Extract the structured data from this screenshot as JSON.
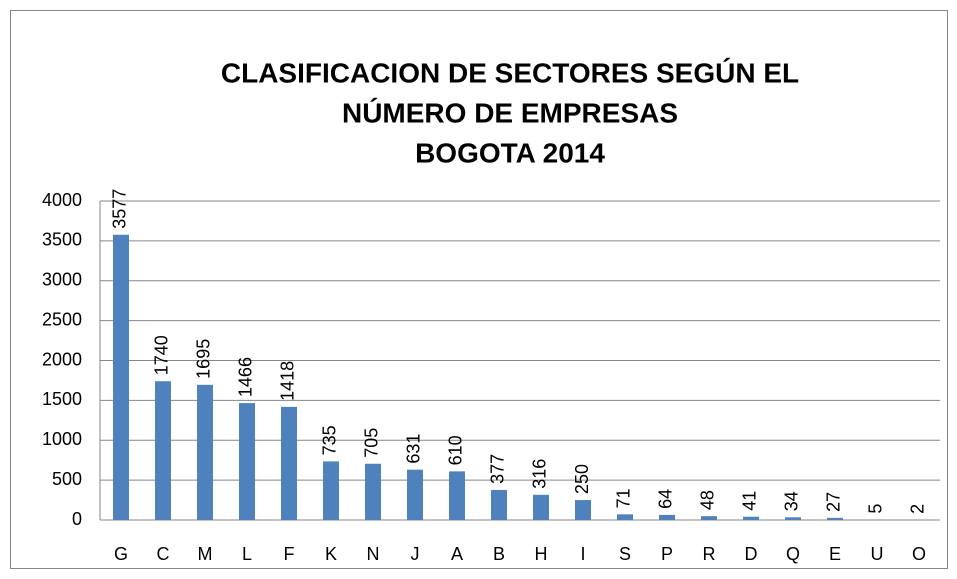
{
  "chart_data": {
    "type": "bar",
    "title": [
      "CLASIFICACION DE SECTORES SEGÚN EL",
      "NÚMERO DE EMPRESAS",
      "BOGOTA 2014"
    ],
    "categories": [
      "G",
      "C",
      "M",
      "L",
      "F",
      "K",
      "N",
      "J",
      "A",
      "B",
      "H",
      "I",
      "S",
      "P",
      "R",
      "D",
      "Q",
      "E",
      "U",
      "O"
    ],
    "values": [
      3577,
      1740,
      1695,
      1466,
      1418,
      735,
      705,
      631,
      610,
      377,
      316,
      250,
      71,
      64,
      48,
      41,
      34,
      27,
      5,
      2
    ],
    "color": "#4f81bd",
    "ylim": [
      0,
      4000
    ],
    "yticks": [
      0,
      500,
      1000,
      1500,
      2000,
      2500,
      3000,
      3500,
      4000
    ],
    "grid": true
  }
}
